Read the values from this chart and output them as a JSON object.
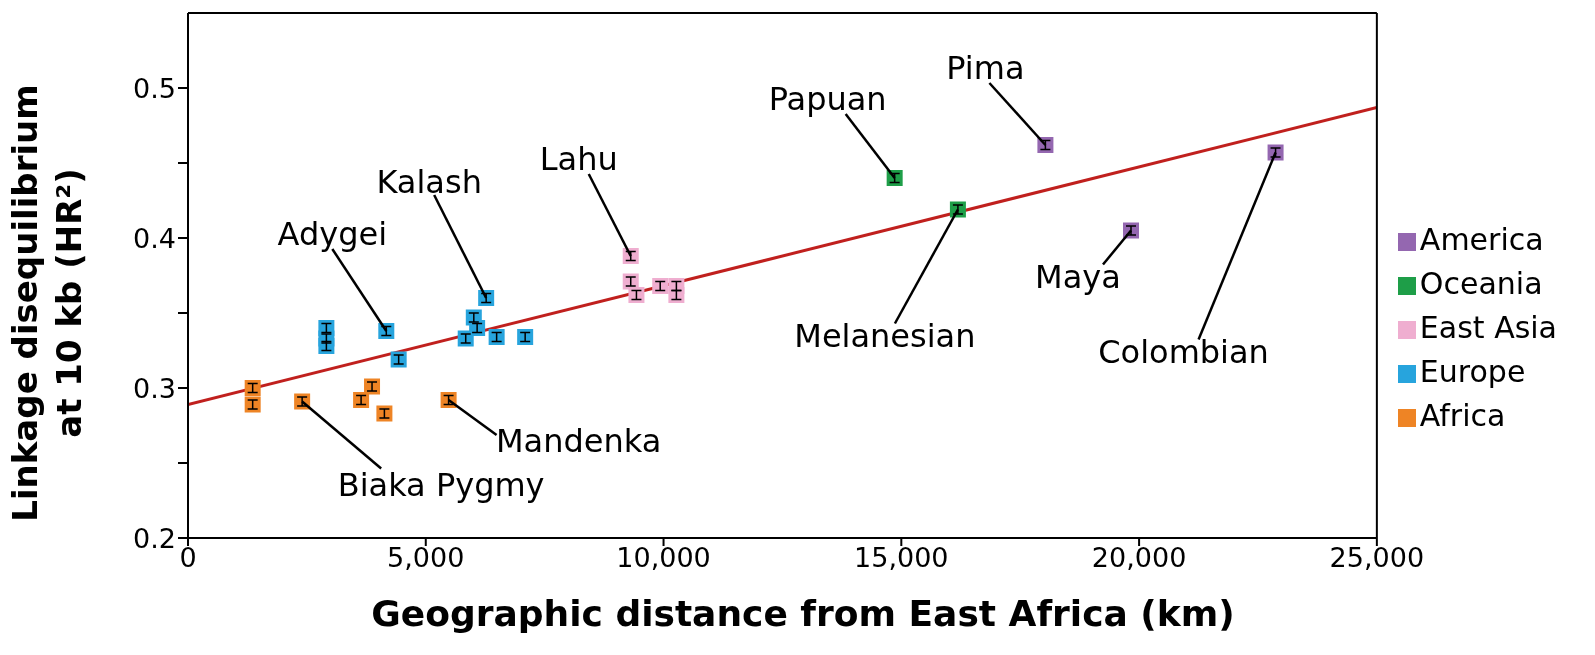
{
  "chart_data": {
    "type": "scatter",
    "xlabel": "Geographic distance from East Africa (km)",
    "ylabel": "Linkage disequilibrium at 10 kb (HR²)",
    "xlim": [
      0,
      25000
    ],
    "xticks": [
      0,
      {
        "value": 5000,
        "label": "5,000"
      },
      {
        "value": 10000,
        "label": "10,000"
      },
      {
        "value": 15000,
        "label": "15,000"
      },
      {
        "value": 20000,
        "label": "20,000"
      },
      {
        "value": 25000,
        "label": "25,000"
      }
    ],
    "ylim": [
      0.2,
      0.55
    ],
    "yticks": [
      0.2,
      {
        "value": 0.25,
        "label": null
      },
      0.3,
      {
        "value": 0.35,
        "label": null
      },
      0.4,
      {
        "value": 0.45,
        "label": null
      },
      0.5
    ],
    "marker": "square",
    "legend": "right",
    "series": [
      {
        "name": "America",
        "color": "#9467b0",
        "x": [
          18030,
          19830,
          22870
        ],
        "values": [
          0.462,
          0.405,
          0.457
        ],
        "errors": [
          0.003,
          0.003,
          0.003
        ]
      },
      {
        "name": "Oceania",
        "color": "#1e9e48",
        "x": [
          14860,
          16190
        ],
        "values": [
          0.44,
          0.419
        ],
        "errors": [
          0.003,
          0.003
        ]
      },
      {
        "name": "East Asia",
        "color": "#efaed0",
        "x": [
          9310,
          9310,
          9430,
          9930,
          10270,
          10270
        ],
        "values": [
          0.388,
          0.371,
          0.362,
          0.368,
          0.368,
          0.362
        ],
        "errors": [
          0.003,
          0.003,
          0.003,
          0.003,
          0.003,
          0.003
        ]
      },
      {
        "name": "Europe",
        "color": "#27a4dd",
        "x": [
          2910,
          2910,
          2910,
          4170,
          4430,
          6270,
          6010,
          6080,
          5840,
          6490,
          7090
        ],
        "values": [
          0.34,
          0.333,
          0.328,
          0.338,
          0.319,
          0.36,
          0.347,
          0.34,
          0.333,
          0.334,
          0.334
        ],
        "errors": [
          0.003,
          0.003,
          0.003,
          0.003,
          0.003,
          0.003,
          0.003,
          0.003,
          0.003,
          0.003,
          0.003
        ]
      },
      {
        "name": "Africa",
        "color": "#ee8425",
        "x": [
          1360,
          1360,
          2400,
          3870,
          3640,
          4130,
          5480
        ],
        "values": [
          0.3,
          0.289,
          0.291,
          0.301,
          0.292,
          0.283,
          0.292
        ],
        "errors": [
          0.003,
          0.003,
          0.003,
          0.003,
          0.003,
          0.003,
          0.003
        ]
      },
      {
        "type": "line",
        "marker": "none",
        "color": "#c0201e",
        "x": [
          0,
          25000
        ],
        "values": [
          0.289,
          0.487
        ]
      }
    ],
    "annotations": [
      {
        "text": "Pima",
        "x": 18030,
        "y": 0.462
      },
      {
        "text": "Papuan",
        "x": 14860,
        "y": 0.44
      },
      {
        "text": "Lahu",
        "x": 9310,
        "y": 0.388
      },
      {
        "text": "Kalash",
        "x": 6270,
        "y": 0.36
      },
      {
        "text": "Adygei",
        "x": 4170,
        "y": 0.338
      },
      {
        "text": "Melanesian",
        "x": 16190,
        "y": 0.419
      },
      {
        "text": "Maya",
        "x": 19830,
        "y": 0.405
      },
      {
        "text": "Colombian",
        "x": 22870,
        "y": 0.457
      },
      {
        "text": "Mandenka",
        "x": 5480,
        "y": 0.292
      },
      {
        "text": "Biaka Pygmy",
        "x": 2400,
        "y": 0.291
      }
    ]
  }
}
